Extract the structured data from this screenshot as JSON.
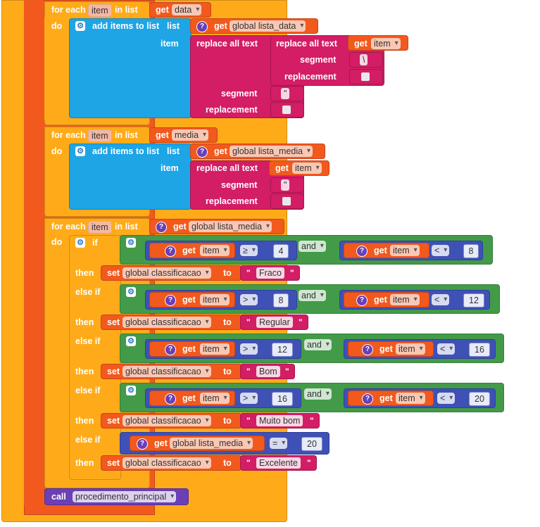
{
  "words": {
    "for_each": "for each",
    "item": "item",
    "in_list": "in list",
    "do": "do",
    "get": "get",
    "add_items": "add items to list",
    "list": "list",
    "replace_all": "replace all text",
    "segment": "segment",
    "replacement": "replacement",
    "if": "if",
    "then": "then",
    "else_if": "else if",
    "set": "set",
    "to": "to",
    "and": "and",
    "call": "call",
    "q": "\""
  },
  "vars": {
    "data": "data",
    "media": "media",
    "lista_data": "global lista_data",
    "lista_media": "global lista_media",
    "classificacao": "global classificacao",
    "proc": "procedimento_principal"
  },
  "strings": {
    "backslash": "\\",
    "quote": "\"",
    "space": " "
  },
  "ops": {
    "gte": "≥",
    "gt": ">",
    "lt": "<",
    "eq": "="
  },
  "nums": {
    "n4": "4",
    "n8": "8",
    "n12": "12",
    "n16": "16",
    "n20": "20"
  },
  "labels": {
    "fraco": "Fraco",
    "regular": "Regular",
    "bom": "Bom",
    "muito_bom": "Muito bom",
    "excelente": "Excelente"
  },
  "colors": {
    "control": "#FFAB19",
    "variables": "#F2591D",
    "lists": "#1DA5E6",
    "text": "#D31D65",
    "logic": "#439A48",
    "math": "#3F51B5",
    "procedures": "#6B3FB5"
  }
}
